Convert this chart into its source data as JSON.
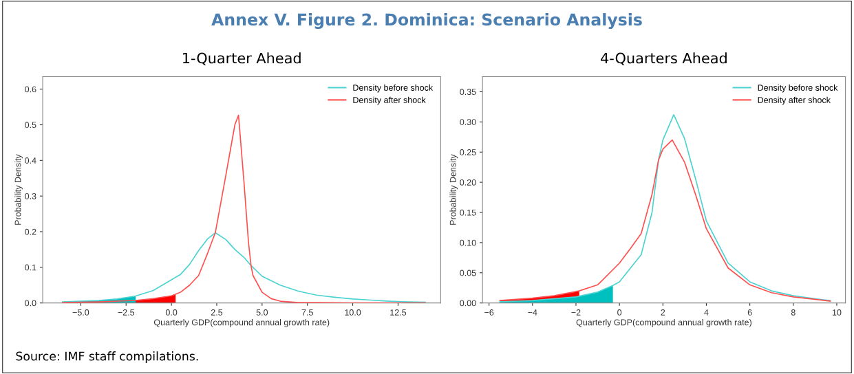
{
  "chart_data": [
    {
      "type": "line",
      "title": "1-Quarter Ahead",
      "xlabel": "Quarterly GDP(compound annual growth rate)",
      "ylabel": "Probability Density",
      "annotations": [
        "Annex V. Figure 2. Dominica: Scenario Analysis",
        "Source: IMF staff compilations."
      ],
      "xlim": [
        -7.1,
        14.85
      ],
      "xticks": [
        {
          "value": -5,
          "label": "−5.0"
        },
        {
          "value": -2.5,
          "label": "−2.5"
        },
        {
          "value": 0,
          "label": "0.0"
        },
        {
          "value": 2.5,
          "label": "2.5"
        },
        {
          "value": 5,
          "label": "5.0"
        },
        {
          "value": 7.5,
          "label": "7.5"
        },
        {
          "value": 10,
          "label": "10.0"
        },
        {
          "value": 12.5,
          "label": "12.5"
        }
      ],
      "ylim": [
        0,
        0.635
      ],
      "yticks": [
        {
          "value": 0,
          "label": "0.0"
        },
        0.1,
        0.2,
        0.3,
        0.4,
        0.5,
        0.6
      ],
      "grid": false,
      "legend": "top right",
      "line_style": "solid",
      "series": [
        {
          "type": "area",
          "color": "#ff0000",
          "x": [
            -6,
            -4,
            -2,
            -1,
            0,
            0.23
          ],
          "values": [
            0.001,
            0.003,
            0.007,
            0.012,
            0.02,
            0.024
          ]
        },
        {
          "type": "area",
          "color": "#00bfbf",
          "x": [
            -6,
            -4,
            -3,
            -1.97
          ],
          "values": [
            0.003,
            0.007,
            0.011,
            0.019
          ]
        },
        {
          "name": "Density before shock",
          "color": "#4dd2d2",
          "x": [
            -6,
            -4,
            -3,
            -2,
            -1,
            0,
            0.5,
            1,
            1.5,
            2,
            2.42,
            3,
            3.5,
            4,
            4.39,
            5,
            6,
            7,
            8,
            9,
            10,
            11,
            12,
            13,
            14
          ],
          "values": [
            0.003,
            0.007,
            0.011,
            0.019,
            0.035,
            0.065,
            0.08,
            0.108,
            0.147,
            0.18,
            0.197,
            0.178,
            0.15,
            0.128,
            0.105,
            0.075,
            0.05,
            0.033,
            0.022,
            0.016,
            0.011,
            0.008,
            0.005,
            0.003,
            0.002
          ]
        },
        {
          "name": "Density after shock",
          "color": "#ff5050",
          "x": [
            -6,
            -4,
            -2,
            -1,
            0,
            0.5,
            1,
            1.5,
            2,
            2.42,
            3,
            3.5,
            3.7,
            4,
            4.25,
            4.39,
            4.5,
            5,
            5.5,
            6,
            7,
            8,
            10,
            14
          ],
          "values": [
            0.001,
            0.003,
            0.007,
            0.012,
            0.02,
            0.03,
            0.05,
            0.077,
            0.14,
            0.197,
            0.358,
            0.5,
            0.527,
            0.34,
            0.17,
            0.105,
            0.077,
            0.03,
            0.012,
            0.005,
            0.001,
            0.001,
            0,
            0
          ]
        }
      ]
    },
    {
      "type": "line",
      "title": "4-Quarters Ahead",
      "xlabel": "Quarterly GDP(compound annual growth rate)",
      "ylabel": "Probability Density",
      "xlim": [
        -6.3,
        10.4
      ],
      "xticks": [
        {
          "value": -6,
          "label": "−6"
        },
        {
          "value": -4,
          "label": "−4"
        },
        {
          "value": -2,
          "label": "−2"
        },
        0,
        2,
        4,
        6,
        8,
        10
      ],
      "ylim": [
        0,
        0.375
      ],
      "yticks": [
        {
          "value": 0,
          "label": "0.00"
        },
        {
          "value": 0.05,
          "label": "0.05"
        },
        {
          "value": 0.1,
          "label": "0.10"
        },
        {
          "value": 0.15,
          "label": "0.15"
        },
        {
          "value": 0.2,
          "label": "0.20"
        },
        {
          "value": 0.25,
          "label": "0.25"
        },
        {
          "value": 0.3,
          "label": "0.30"
        },
        {
          "value": 0.35,
          "label": "0.35"
        }
      ],
      "grid": false,
      "legend": "top right",
      "line_style": "solid",
      "series": [
        {
          "type": "area",
          "color": "#ff0000",
          "x": [
            -5.5,
            -4,
            -3,
            -1.85
          ],
          "values": [
            0.004,
            0.008,
            0.012,
            0.02
          ]
        },
        {
          "type": "area",
          "color": "#00bfbf",
          "x": [
            -5.5,
            -4,
            -2,
            -1,
            -0.3
          ],
          "values": [
            0.002,
            0.004,
            0.01,
            0.018,
            0.029
          ]
        },
        {
          "name": "Density before shock",
          "color": "#4dd2d2",
          "x": [
            -5.5,
            -4,
            -2,
            -1,
            -0.3,
            0,
            1,
            1.5,
            1.8,
            2,
            2.5,
            3,
            3.5,
            4,
            5,
            6,
            7,
            8,
            9,
            9.7
          ],
          "values": [
            0.002,
            0.004,
            0.01,
            0.018,
            0.029,
            0.035,
            0.08,
            0.15,
            0.237,
            0.27,
            0.312,
            0.272,
            0.206,
            0.136,
            0.066,
            0.035,
            0.02,
            0.012,
            0.007,
            0.004
          ]
        },
        {
          "name": "Density after shock",
          "color": "#ff5050",
          "x": [
            -5.5,
            -4,
            -3,
            -1.85,
            -1,
            0,
            0.5,
            1,
            1.5,
            1.8,
            2,
            2.43,
            3,
            3.5,
            4,
            5,
            6,
            7,
            8,
            9,
            9.7
          ],
          "values": [
            0.004,
            0.008,
            0.012,
            0.02,
            0.03,
            0.066,
            0.09,
            0.115,
            0.18,
            0.237,
            0.255,
            0.27,
            0.233,
            0.18,
            0.123,
            0.058,
            0.03,
            0.017,
            0.01,
            0.006,
            0.003
          ]
        }
      ]
    }
  ]
}
